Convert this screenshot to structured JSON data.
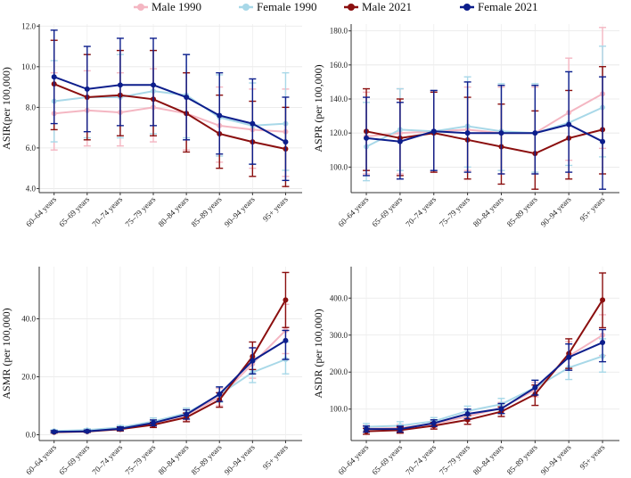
{
  "legend": [
    {
      "name": "Male 1990",
      "color": "#f4b6c2"
    },
    {
      "name": "Female 1990",
      "color": "#a8d8e8"
    },
    {
      "name": "Male 2021",
      "color": "#8b0f0f"
    },
    {
      "name": "Female 2021",
      "color": "#0d1e8c"
    }
  ],
  "chart_data": [
    {
      "type": "line",
      "ylabel": "ASIR(per 100,000)",
      "categories": [
        "60–64 years",
        "65–69 years",
        "70–74 years",
        "75–79 years",
        "80–84 years",
        "85–89 years",
        "90–94 years",
        "95+ years"
      ],
      "ylim": [
        3.8,
        12.1
      ],
      "yticks": [
        4.0,
        6.0,
        8.0,
        10.0,
        12.0
      ],
      "yticklabels": [
        "4.0",
        "6.0",
        "8.0",
        "10.0",
        "12.0"
      ],
      "series": [
        {
          "name": "Male 1990",
          "color": "#f4b6c2",
          "values": [
            7.7,
            7.85,
            7.75,
            8.0,
            7.7,
            7.1,
            6.9,
            6.8
          ],
          "lower": [
            5.9,
            6.1,
            6.1,
            6.3,
            5.9,
            5.3,
            5.0,
            4.6
          ],
          "upper": [
            9.7,
            9.8,
            9.7,
            9.9,
            9.7,
            9.0,
            8.9,
            8.9
          ]
        },
        {
          "name": "Female 1990",
          "color": "#a8d8e8",
          "values": [
            8.3,
            8.5,
            8.5,
            8.8,
            8.6,
            7.5,
            7.1,
            7.2
          ],
          "lower": [
            6.3,
            6.5,
            6.5,
            6.7,
            6.5,
            5.6,
            5.2,
            4.9
          ],
          "upper": [
            10.3,
            10.6,
            10.6,
            10.8,
            10.6,
            9.6,
            9.2,
            9.7
          ]
        },
        {
          "name": "Male 2021",
          "color": "#8b0f0f",
          "values": [
            9.15,
            8.5,
            8.6,
            8.4,
            7.7,
            6.7,
            6.3,
            5.95
          ],
          "lower": [
            6.9,
            6.4,
            6.6,
            6.6,
            5.8,
            5.0,
            4.6,
            4.1
          ],
          "upper": [
            11.3,
            10.6,
            10.8,
            10.8,
            9.7,
            8.6,
            8.3,
            8.0
          ]
        },
        {
          "name": "Female 2021",
          "color": "#0d1e8c",
          "values": [
            9.5,
            8.9,
            9.1,
            9.1,
            8.5,
            7.6,
            7.2,
            6.3
          ],
          "lower": [
            7.2,
            6.8,
            7.1,
            7.1,
            6.4,
            5.7,
            5.2,
            4.4
          ],
          "upper": [
            11.8,
            11.0,
            11.4,
            11.4,
            10.6,
            9.7,
            9.4,
            8.5
          ]
        }
      ]
    },
    {
      "type": "line",
      "ylabel": "ASPR (per 100,000)",
      "categories": [
        "60–64 years",
        "65–69 years",
        "70–74 years",
        "75–79 years",
        "80–84 years",
        "85–89 years",
        "90–94 years",
        "95+ years"
      ],
      "ylim": [
        85,
        184
      ],
      "yticks": [
        100,
        120,
        140,
        160,
        180
      ],
      "yticklabels": [
        "100.0",
        "120.0",
        "140.0",
        "160.0",
        "180.0"
      ],
      "series": [
        {
          "name": "Male 1990",
          "color": "#f4b6c2",
          "values": [
            118,
            120,
            121,
            122,
            120,
            120,
            132,
            143
          ],
          "lower": [
            96,
            96,
            97,
            98,
            96,
            96,
            104,
            111
          ],
          "upper": [
            144,
            146,
            145,
            147,
            147,
            147,
            164,
            182
          ]
        },
        {
          "name": "Female 1990",
          "color": "#a8d8e8",
          "values": [
            112,
            122,
            121,
            124,
            121,
            120,
            126,
            135
          ],
          "lower": [
            92,
            98,
            98,
            100,
            98,
            97,
            101,
            106
          ],
          "upper": [
            138,
            146,
            145,
            153,
            149,
            149,
            156,
            171
          ]
        },
        {
          "name": "Male 2021",
          "color": "#8b0f0f",
          "values": [
            121,
            117,
            120,
            116,
            112,
            108,
            117,
            122
          ],
          "lower": [
            98,
            95,
            97,
            93,
            90,
            87,
            93,
            96
          ],
          "upper": [
            146,
            140,
            144,
            141,
            137,
            133,
            145,
            159
          ]
        },
        {
          "name": "Female 2021",
          "color": "#0d1e8c",
          "values": [
            117,
            115,
            121,
            120,
            120,
            120,
            125,
            115
          ],
          "lower": [
            95,
            93,
            98,
            97,
            96,
            96,
            97,
            87
          ],
          "upper": [
            141,
            138,
            145,
            150,
            148,
            148,
            156,
            153
          ]
        }
      ]
    },
    {
      "type": "line",
      "ylabel": "ASMR (per 100,000)",
      "categories": [
        "60–64 years",
        "65–69 years",
        "70–74 years",
        "75–79 years",
        "80–84 years",
        "85–89 years",
        "90–94 years",
        "95+ years"
      ],
      "ylim": [
        -2,
        58
      ],
      "yticks": [
        0,
        20,
        40
      ],
      "yticklabels": [
        "0.0",
        "20.0",
        "40.0"
      ],
      "series": [
        {
          "name": "Male 1990",
          "color": "#f4b6c2",
          "values": [
            1.2,
            1.5,
            2.3,
            4.0,
            6.8,
            13.0,
            24.5,
            36.0
          ],
          "lower": [
            0.8,
            1.0,
            1.6,
            2.9,
            5.1,
            10.0,
            19.5,
            28.0
          ],
          "upper": [
            1.6,
            2.0,
            3.0,
            5.2,
            8.6,
            16.0,
            30.0,
            45.0
          ]
        },
        {
          "name": "Female 1990",
          "color": "#a8d8e8",
          "values": [
            1.3,
            1.6,
            2.5,
            4.6,
            7.4,
            13.8,
            21.5,
            26.0
          ],
          "lower": [
            0.9,
            1.1,
            1.8,
            3.5,
            5.8,
            11.2,
            18.0,
            21.0
          ],
          "upper": [
            1.7,
            2.1,
            3.2,
            5.8,
            9.2,
            16.5,
            25.5,
            32.0
          ]
        },
        {
          "name": "Male 2021",
          "color": "#8b0f0f",
          "values": [
            0.9,
            1.1,
            1.9,
            3.4,
            6.0,
            12.0,
            27.0,
            46.5
          ],
          "lower": [
            0.6,
            0.8,
            1.3,
            2.5,
            4.5,
            9.5,
            22.5,
            37.0
          ],
          "upper": [
            1.3,
            1.5,
            2.5,
            4.3,
            7.5,
            14.5,
            32.0,
            56.0
          ]
        },
        {
          "name": "Female 2021",
          "color": "#0d1e8c",
          "values": [
            1.0,
            1.2,
            2.1,
            4.1,
            7.0,
            14.0,
            25.5,
            32.5
          ],
          "lower": [
            0.7,
            0.9,
            1.5,
            3.1,
            5.4,
            11.5,
            21.0,
            26.0
          ],
          "upper": [
            1.4,
            1.6,
            2.7,
            5.1,
            8.6,
            16.5,
            30.0,
            36.0
          ]
        }
      ]
    },
    {
      "type": "line",
      "ylabel": "ASDR (per 100,000)",
      "categories": [
        "60–64 years",
        "65–69 years",
        "70–74 years",
        "75–79 years",
        "80–84 years",
        "85–89 years",
        "90–94 years",
        "95+ years"
      ],
      "ylim": [
        15,
        485
      ],
      "yticks": [
        100,
        200,
        300,
        400
      ],
      "yticklabels": [
        "100.0",
        "200.0",
        "300.0",
        "400.0"
      ],
      "series": [
        {
          "name": "Male 1990",
          "color": "#f4b6c2",
          "values": [
            47,
            49,
            60,
            80,
            103,
            152,
            243,
            300
          ],
          "lower": [
            38,
            40,
            50,
            67,
            88,
            133,
            205,
            245
          ],
          "upper": [
            56,
            59,
            70,
            94,
            118,
            172,
            282,
            355
          ]
        },
        {
          "name": "Female 1990",
          "color": "#a8d8e8",
          "values": [
            52,
            55,
            67,
            95,
            113,
            158,
            212,
            243
          ],
          "lower": [
            43,
            45,
            57,
            81,
            97,
            138,
            180,
            200
          ],
          "upper": [
            61,
            66,
            77,
            108,
            129,
            178,
            240,
            290
          ]
        },
        {
          "name": "Male 2021",
          "color": "#8b0f0f",
          "values": [
            40,
            43,
            55,
            71,
            93,
            140,
            250,
            395
          ],
          "lower": [
            32,
            35,
            46,
            59,
            80,
            110,
            210,
            320
          ],
          "upper": [
            48,
            51,
            64,
            83,
            106,
            165,
            290,
            468
          ]
        },
        {
          "name": "Female 2021",
          "color": "#0d1e8c",
          "values": [
            46,
            46,
            62,
            87,
            101,
            158,
            240,
            280
          ],
          "lower": [
            38,
            38,
            53,
            74,
            88,
            138,
            205,
            228
          ],
          "upper": [
            54,
            54,
            71,
            100,
            115,
            178,
            276,
            315
          ]
        }
      ]
    }
  ]
}
